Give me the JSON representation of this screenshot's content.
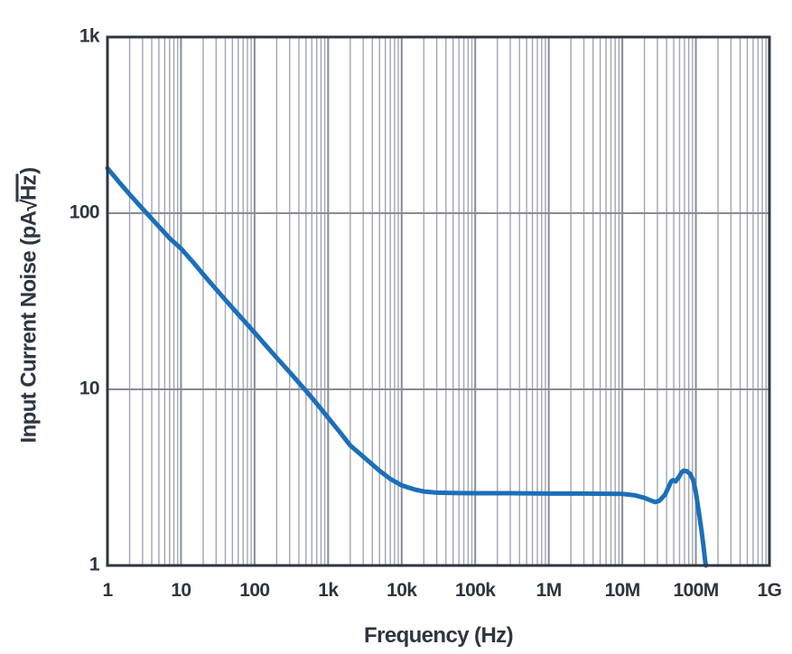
{
  "chart_data": {
    "type": "line",
    "title": "",
    "xlabel": "Frequency (Hz)",
    "ylabel_parts": {
      "prefix": "Input Current Noise (pA",
      "sqrt_sign": "√",
      "radicand": "Hz",
      "suffix": ")"
    },
    "x_scale": "log",
    "y_scale": "log",
    "xlim": [
      1,
      1000000000
    ],
    "ylim": [
      1,
      1000
    ],
    "x_ticks": [
      {
        "value": 1,
        "label": "1"
      },
      {
        "value": 10,
        "label": "10"
      },
      {
        "value": 100,
        "label": "100"
      },
      {
        "value": 1000,
        "label": "1k"
      },
      {
        "value": 10000,
        "label": "10k"
      },
      {
        "value": 100000,
        "label": "100k"
      },
      {
        "value": 1000000,
        "label": "1M"
      },
      {
        "value": 10000000,
        "label": "10M"
      },
      {
        "value": 100000000,
        "label": "100M"
      },
      {
        "value": 1000000000,
        "label": "1G"
      }
    ],
    "y_ticks": [
      {
        "value": 1,
        "label": "1"
      },
      {
        "value": 10,
        "label": "10"
      },
      {
        "value": 100,
        "label": "100"
      },
      {
        "value": 1000,
        "label": "1k"
      }
    ],
    "grid": {
      "minor_vertical": true,
      "major_vertical": true,
      "major_horizontal": true,
      "minor_horizontal": false
    },
    "legend": "none",
    "series": [
      {
        "name": "input-current-noise",
        "color": "#1b6fb9",
        "stroke_width": 5,
        "points": [
          [
            1,
            180
          ],
          [
            1.5,
            147
          ],
          [
            2,
            128
          ],
          [
            3,
            106
          ],
          [
            5,
            84
          ],
          [
            7,
            72
          ],
          [
            10,
            63
          ],
          [
            15,
            52
          ],
          [
            20,
            45
          ],
          [
            30,
            37
          ],
          [
            50,
            29
          ],
          [
            70,
            24.8
          ],
          [
            100,
            21
          ],
          [
            150,
            17.3
          ],
          [
            200,
            15.1
          ],
          [
            300,
            12.5
          ],
          [
            500,
            9.8
          ],
          [
            700,
            8.3
          ],
          [
            1000,
            6.9
          ],
          [
            1500,
            5.6
          ],
          [
            2000,
            4.8
          ],
          [
            3000,
            4.15
          ],
          [
            5000,
            3.45
          ],
          [
            7000,
            3.1
          ],
          [
            10000,
            2.85
          ],
          [
            15000,
            2.7
          ],
          [
            20000,
            2.63
          ],
          [
            30000,
            2.59
          ],
          [
            50000,
            2.58
          ],
          [
            100000,
            2.57
          ],
          [
            300000,
            2.57
          ],
          [
            1000000,
            2.56
          ],
          [
            3000000,
            2.56
          ],
          [
            10000000,
            2.55
          ],
          [
            15000000,
            2.5
          ],
          [
            20000000,
            2.42
          ],
          [
            25000000,
            2.33
          ],
          [
            28000000,
            2.29
          ],
          [
            32000000,
            2.33
          ],
          [
            38000000,
            2.52
          ],
          [
            42000000,
            2.75
          ],
          [
            46000000,
            3.0
          ],
          [
            49000000,
            3.05
          ],
          [
            53000000,
            3.0
          ],
          [
            58000000,
            3.15
          ],
          [
            64000000,
            3.38
          ],
          [
            68000000,
            3.45
          ],
          [
            75000000,
            3.43
          ],
          [
            83000000,
            3.32
          ],
          [
            92000000,
            3.05
          ],
          [
            100000000,
            2.6
          ],
          [
            110000000,
            2.0
          ],
          [
            120000000,
            1.55
          ],
          [
            128000000,
            1.25
          ],
          [
            134000000,
            1.05
          ],
          [
            137000000,
            1.0
          ]
        ]
      }
    ],
    "colors": {
      "background": "#ffffff",
      "axis_and_text": "#2e3540",
      "grid_minor": "#a2a6b0",
      "grid_major": "#878c97",
      "curve": "#1b6fb9"
    }
  }
}
